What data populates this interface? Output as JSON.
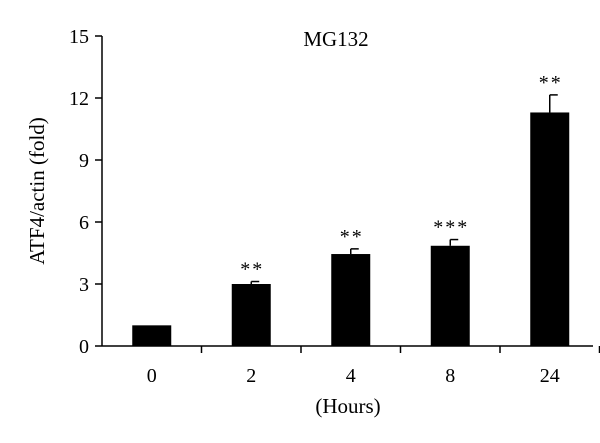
{
  "chart_data": {
    "type": "bar",
    "title": "MG132",
    "xlabel": "(Hours)",
    "ylabel": "ATF4/actin (fold)",
    "categories": [
      "0",
      "2",
      "4",
      "8",
      "24"
    ],
    "values": [
      1.0,
      3.0,
      4.45,
      4.85,
      11.3
    ],
    "errors": [
      0.0,
      0.12,
      0.25,
      0.3,
      0.85
    ],
    "significance": [
      "",
      "**",
      "**",
      "***",
      "**"
    ],
    "ylim": [
      0,
      15
    ],
    "yticks": [
      0,
      3,
      6,
      9,
      12,
      15
    ],
    "ytick_labels": [
      "0",
      "3",
      "6",
      "9",
      "12",
      "15"
    ],
    "bar_color": "#000000",
    "grid": false,
    "legend": "none"
  }
}
